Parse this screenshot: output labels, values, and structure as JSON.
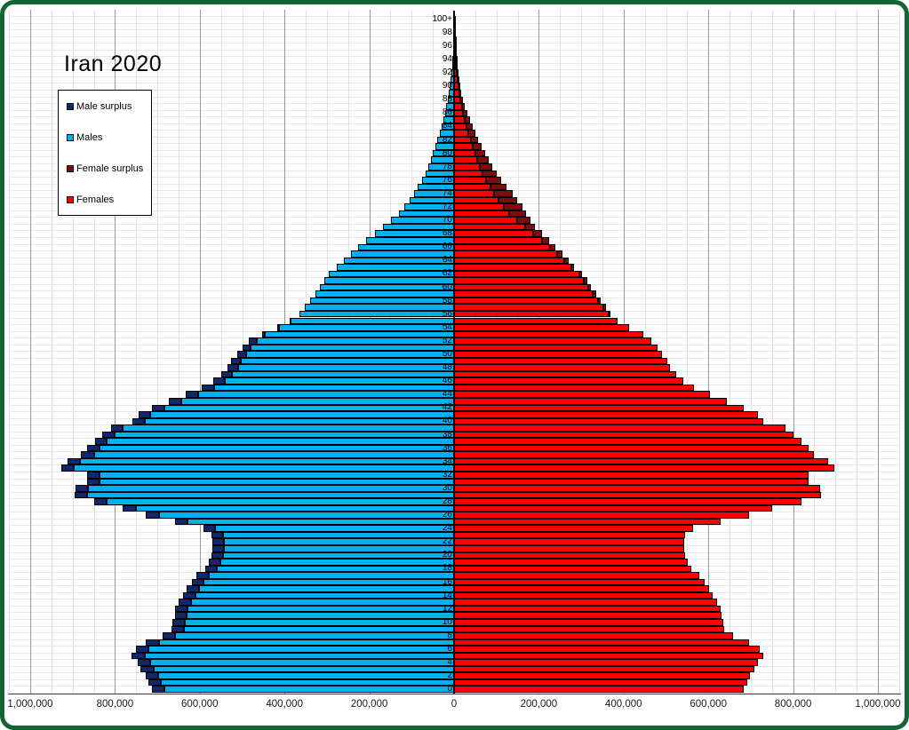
{
  "title": "Iran 2020",
  "legend": [
    {
      "label": "Male surplus",
      "color": "#12266B"
    },
    {
      "label": "Males",
      "color": "#00B0F0"
    },
    {
      "label": "Female surplus",
      "color": "#7B0D0D"
    },
    {
      "label": "Females",
      "color": "#FE0000"
    }
  ],
  "frame_color": "#116633",
  "chart_data": {
    "type": "bar",
    "subtype": "population-pyramid",
    "title": "Iran 2020",
    "orientation": "horizontal",
    "grid": {
      "minor_step": 50000,
      "major_step": 200000,
      "minor_color": "#e3e3e3",
      "major_color": "#979797"
    },
    "x_axis": {
      "max_each_side": 1000000,
      "ticks": [
        {
          "value": -1000000,
          "label": "1,000,000"
        },
        {
          "value": -800000,
          "label": "800,000"
        },
        {
          "value": -600000,
          "label": "600,000"
        },
        {
          "value": -400000,
          "label": "400,000"
        },
        {
          "value": -200000,
          "label": "200,000"
        },
        {
          "value": 0,
          "label": "0"
        },
        {
          "value": 200000,
          "label": "200,000"
        },
        {
          "value": 400000,
          "label": "400,000"
        },
        {
          "value": 600000,
          "label": "600,000"
        },
        {
          "value": 800000,
          "label": "800,000"
        },
        {
          "value": 1000000,
          "label": "1,000,000"
        }
      ]
    },
    "y_axis": {
      "unit": "age_years",
      "min": 0,
      "top_label": "100+",
      "label_step": 2
    },
    "ages": "single years 0 through 100+, bottom to top",
    "series": [
      {
        "name": "Males",
        "side": "left",
        "color": "#00B0F0",
        "surplus_color": "#12266B",
        "values": [
          713000,
          721000,
          728000,
          739000,
          746000,
          760000,
          751000,
          727000,
          688000,
          666000,
          664000,
          659000,
          658000,
          650000,
          640000,
          630000,
          619000,
          607000,
          588000,
          578000,
          572000,
          570000,
          571000,
          573000,
          592000,
          658000,
          727000,
          781000,
          849000,
          896000,
          893000,
          866000,
          866000,
          927000,
          912000,
          880000,
          865000,
          848000,
          830000,
          810000,
          759000,
          745000,
          712000,
          673000,
          633000,
          595000,
          568000,
          550000,
          535000,
          527000,
          512000,
          500000,
          484000,
          452000,
          417000,
          387000,
          365000,
          352000,
          340000,
          328000,
          316000,
          306000,
          295000,
          276000,
          261000,
          243000,
          226000,
          207000,
          187000,
          168000,
          148000,
          131000,
          117000,
          105000,
          94000,
          85000,
          76000,
          68000,
          61000,
          55000,
          50000,
          44000,
          39000,
          34000,
          29000,
          25000,
          21000,
          18000,
          15000,
          12500,
          10500,
          8000,
          6000,
          4500,
          3200,
          2300,
          1600,
          1100,
          700,
          500,
          800
        ]
      },
      {
        "name": "Females",
        "side": "right",
        "color": "#FE0000",
        "surplus_color": "#7B0D0D",
        "values": [
          683000,
          691000,
          698000,
          709000,
          716000,
          730000,
          721000,
          697000,
          658000,
          637000,
          635000,
          630000,
          629000,
          621000,
          611000,
          602000,
          591000,
          579000,
          560000,
          551000,
          545000,
          543000,
          544000,
          546000,
          564000,
          629000,
          697000,
          751000,
          819000,
          866000,
          863000,
          836000,
          836000,
          897000,
          882000,
          850000,
          836000,
          819000,
          801000,
          782000,
          730000,
          716000,
          683000,
          644000,
          604000,
          567000,
          541000,
          524000,
          510000,
          503000,
          490000,
          480000,
          466000,
          447000,
          414000,
          386000,
          370000,
          358000,
          346000,
          335000,
          323000,
          314000,
          302000,
          284000,
          270000,
          255000,
          239000,
          225000,
          208000,
          190000,
          180000,
          170000,
          161000,
          149000,
          138000,
          124000,
          112000,
          101000,
          91000,
          82000,
          74000,
          66000,
          57000,
          50000,
          43000,
          37000,
          31000,
          26000,
          21000,
          17000,
          14000,
          10000,
          7500,
          5500,
          4000,
          3000,
          2000,
          1400,
          900,
          600,
          1300
        ]
      }
    ]
  }
}
